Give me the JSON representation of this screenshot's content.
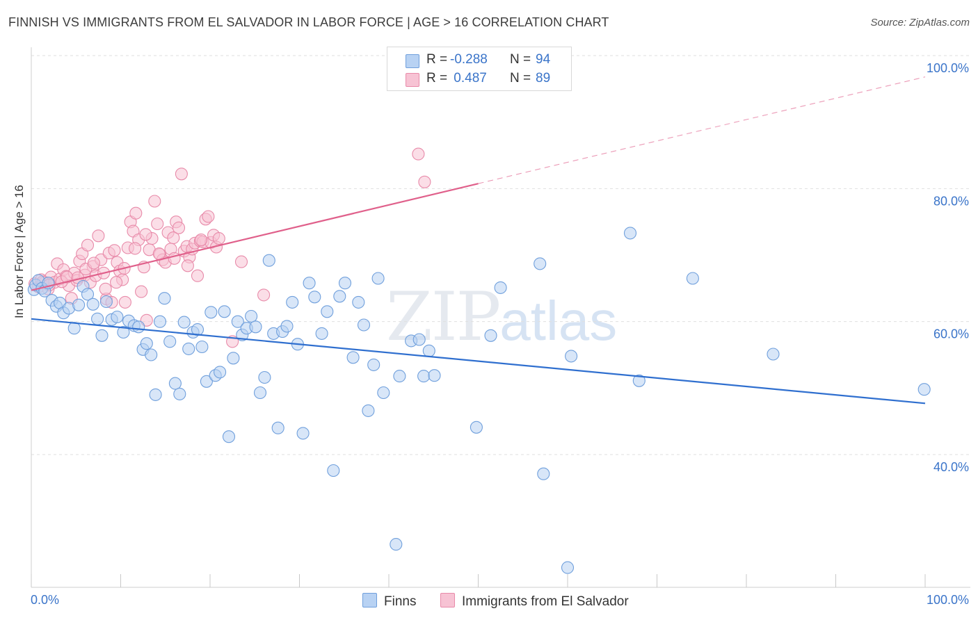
{
  "title": "FINNISH VS IMMIGRANTS FROM EL SALVADOR IN LABOR FORCE | AGE > 16 CORRELATION CHART",
  "source": "Source: ZipAtlas.com",
  "watermark_zip": "ZIP",
  "watermark_atlas": "atlas",
  "legend": {
    "finns": {
      "r_label": "R = ",
      "r_value": "-0.288",
      "n_label": "N = ",
      "n_value": "94"
    },
    "salvador": {
      "r_label": "R = ",
      "r_value": " 0.487",
      "n_label": "N = ",
      "n_value": "89"
    }
  },
  "colors": {
    "finns_fill": "#b8d2f3",
    "finns_stroke": "#6f9fdc",
    "finns_line": "#2f6fcf",
    "salvador_fill": "#f7c3d4",
    "salvador_stroke": "#e88aa9",
    "salvador_line": "#e0608b",
    "grid": "#dfdfdf",
    "axis_text": "#3a74c9"
  },
  "chart_data": {
    "type": "scatter",
    "title": "FINNISH VS IMMIGRANTS FROM EL SALVADOR IN LABOR FORCE | AGE > 16 CORRELATION CHART",
    "xlabel": "",
    "ylabel": "In Labor Force | Age > 16",
    "xlim": [
      0,
      100
    ],
    "ylim": [
      20,
      104
    ],
    "x_tick_labels": [
      "0.0%",
      "100.0%"
    ],
    "y_ticks": [
      40,
      60,
      80,
      100
    ],
    "y_tick_labels": [
      "40.0%",
      "60.0%",
      "80.0%",
      "100.0%"
    ],
    "grid": true,
    "legend_position": "top-center",
    "series": [
      {
        "name": "Finns",
        "r": -0.288,
        "n": 94,
        "trend": {
          "x": [
            0,
            100
          ],
          "y": [
            60.4,
            47.7
          ],
          "style": "solid"
        },
        "points": [
          [
            0.3,
            64.8
          ],
          [
            0.5,
            65.5
          ],
          [
            0.8,
            66.2
          ],
          [
            1.2,
            65.0
          ],
          [
            1.5,
            64.6
          ],
          [
            1.9,
            65.8
          ],
          [
            2.3,
            63.2
          ],
          [
            2.8,
            62.3
          ],
          [
            3.2,
            62.8
          ],
          [
            3.6,
            61.3
          ],
          [
            4.2,
            62.0
          ],
          [
            4.8,
            59.0
          ],
          [
            5.3,
            62.5
          ],
          [
            5.8,
            65.3
          ],
          [
            6.3,
            64.1
          ],
          [
            6.9,
            62.6
          ],
          [
            7.4,
            60.4
          ],
          [
            7.9,
            57.9
          ],
          [
            8.4,
            63.0
          ],
          [
            9.0,
            60.3
          ],
          [
            9.6,
            60.7
          ],
          [
            10.3,
            58.4
          ],
          [
            10.9,
            60.1
          ],
          [
            11.5,
            59.4
          ],
          [
            12.0,
            59.2
          ],
          [
            12.5,
            55.8
          ],
          [
            12.9,
            56.7
          ],
          [
            13.4,
            55.0
          ],
          [
            13.9,
            49.0
          ],
          [
            14.4,
            60.0
          ],
          [
            14.9,
            63.5
          ],
          [
            15.5,
            57.0
          ],
          [
            16.1,
            50.7
          ],
          [
            16.6,
            49.1
          ],
          [
            17.1,
            59.9
          ],
          [
            17.6,
            55.9
          ],
          [
            18.1,
            58.4
          ],
          [
            18.6,
            58.8
          ],
          [
            19.1,
            56.2
          ],
          [
            19.6,
            51.0
          ],
          [
            20.1,
            61.4
          ],
          [
            20.6,
            51.9
          ],
          [
            21.1,
            52.4
          ],
          [
            21.6,
            61.5
          ],
          [
            22.1,
            42.7
          ],
          [
            22.6,
            54.5
          ],
          [
            23.1,
            60.0
          ],
          [
            23.6,
            58.0
          ],
          [
            24.1,
            59.0
          ],
          [
            24.6,
            60.8
          ],
          [
            25.1,
            59.2
          ],
          [
            25.6,
            49.3
          ],
          [
            26.1,
            51.6
          ],
          [
            26.6,
            69.2
          ],
          [
            27.1,
            58.2
          ],
          [
            27.6,
            44.0
          ],
          [
            28.1,
            58.5
          ],
          [
            28.6,
            59.3
          ],
          [
            29.2,
            62.9
          ],
          [
            29.8,
            56.6
          ],
          [
            30.4,
            43.2
          ],
          [
            31.1,
            65.8
          ],
          [
            31.7,
            63.7
          ],
          [
            32.5,
            58.2
          ],
          [
            33.1,
            61.5
          ],
          [
            33.8,
            37.6
          ],
          [
            34.5,
            63.8
          ],
          [
            35.1,
            65.8
          ],
          [
            36.0,
            54.6
          ],
          [
            36.6,
            62.9
          ],
          [
            37.2,
            59.5
          ],
          [
            37.7,
            46.6
          ],
          [
            38.3,
            53.5
          ],
          [
            38.8,
            66.5
          ],
          [
            39.4,
            49.3
          ],
          [
            40.8,
            26.5
          ],
          [
            41.2,
            51.8
          ],
          [
            42.5,
            57.1
          ],
          [
            43.4,
            57.3
          ],
          [
            43.9,
            51.8
          ],
          [
            44.5,
            55.6
          ],
          [
            45.1,
            51.9
          ],
          [
            49.8,
            44.1
          ],
          [
            51.4,
            57.9
          ],
          [
            52.5,
            65.1
          ],
          [
            56.9,
            68.7
          ],
          [
            57.3,
            37.1
          ],
          [
            60.0,
            23.0
          ],
          [
            60.4,
            54.8
          ],
          [
            68.0,
            51.1
          ],
          [
            67.0,
            73.3
          ],
          [
            74.0,
            66.5
          ],
          [
            83.0,
            55.1
          ],
          [
            99.9,
            49.8
          ]
        ]
      },
      {
        "name": "Immigrants from El Salvador",
        "r": 0.487,
        "n": 89,
        "trend": {
          "x": [
            0,
            100
          ],
          "y": [
            64.7,
            96.8
          ],
          "solid_until_x": 50,
          "style": "solid then dashed"
        },
        "points": [
          [
            0.4,
            65.7
          ],
          [
            0.8,
            65.2
          ],
          [
            1.1,
            66.3
          ],
          [
            1.5,
            65.9
          ],
          [
            1.9,
            64.9
          ],
          [
            2.2,
            66.7
          ],
          [
            2.6,
            65.9
          ],
          [
            2.9,
            68.7
          ],
          [
            3.2,
            66.4
          ],
          [
            3.6,
            67.8
          ],
          [
            3.9,
            66.8
          ],
          [
            4.2,
            65.4
          ],
          [
            4.5,
            63.5
          ],
          [
            4.8,
            67.3
          ],
          [
            5.1,
            66.2
          ],
          [
            5.4,
            69.1
          ],
          [
            5.7,
            70.2
          ],
          [
            6.0,
            67.0
          ],
          [
            6.3,
            71.5
          ],
          [
            6.6,
            65.9
          ],
          [
            6.9,
            68.3
          ],
          [
            7.2,
            66.9
          ],
          [
            7.5,
            72.9
          ],
          [
            7.8,
            69.3
          ],
          [
            8.1,
            67.3
          ],
          [
            8.4,
            63.4
          ],
          [
            8.7,
            70.3
          ],
          [
            9.0,
            62.9
          ],
          [
            9.3,
            70.7
          ],
          [
            9.6,
            68.9
          ],
          [
            9.9,
            67.6
          ],
          [
            10.2,
            66.3
          ],
          [
            10.5,
            62.9
          ],
          [
            10.8,
            71.1
          ],
          [
            11.1,
            75.0
          ],
          [
            11.4,
            73.6
          ],
          [
            11.7,
            76.3
          ],
          [
            12.0,
            72.3
          ],
          [
            12.3,
            64.5
          ],
          [
            12.6,
            68.2
          ],
          [
            12.9,
            60.2
          ],
          [
            13.2,
            70.8
          ],
          [
            13.5,
            72.5
          ],
          [
            13.8,
            78.1
          ],
          [
            14.1,
            74.7
          ],
          [
            14.4,
            70.1
          ],
          [
            14.7,
            69.3
          ],
          [
            15.0,
            68.9
          ],
          [
            15.3,
            73.4
          ],
          [
            15.6,
            70.9
          ],
          [
            15.9,
            72.6
          ],
          [
            16.2,
            75.0
          ],
          [
            16.5,
            74.1
          ],
          [
            16.8,
            82.2
          ],
          [
            17.1,
            70.6
          ],
          [
            17.4,
            71.3
          ],
          [
            17.7,
            69.7
          ],
          [
            18.0,
            70.9
          ],
          [
            18.3,
            71.8
          ],
          [
            18.6,
            66.9
          ],
          [
            18.9,
            72.1
          ],
          [
            19.2,
            72.0
          ],
          [
            19.5,
            75.4
          ],
          [
            19.8,
            75.8
          ],
          [
            20.1,
            71.9
          ],
          [
            20.4,
            73.0
          ],
          [
            20.7,
            71.2
          ],
          [
            21.0,
            72.5
          ],
          [
            1.3,
            66.0
          ],
          [
            2.0,
            65.5
          ],
          [
            3.4,
            66.0
          ],
          [
            4.0,
            66.7
          ],
          [
            5.2,
            66.6
          ],
          [
            6.1,
            67.9
          ],
          [
            7.0,
            68.8
          ],
          [
            8.3,
            64.9
          ],
          [
            9.5,
            65.9
          ],
          [
            10.4,
            68.0
          ],
          [
            11.6,
            71.0
          ],
          [
            12.8,
            73.1
          ],
          [
            14.3,
            70.2
          ],
          [
            16.0,
            69.5
          ],
          [
            17.5,
            68.4
          ],
          [
            19.0,
            72.3
          ],
          [
            22.5,
            57.0
          ],
          [
            23.5,
            69.0
          ],
          [
            26.0,
            64.0
          ],
          [
            43.3,
            85.2
          ],
          [
            44.0,
            81.0
          ]
        ]
      }
    ]
  }
}
